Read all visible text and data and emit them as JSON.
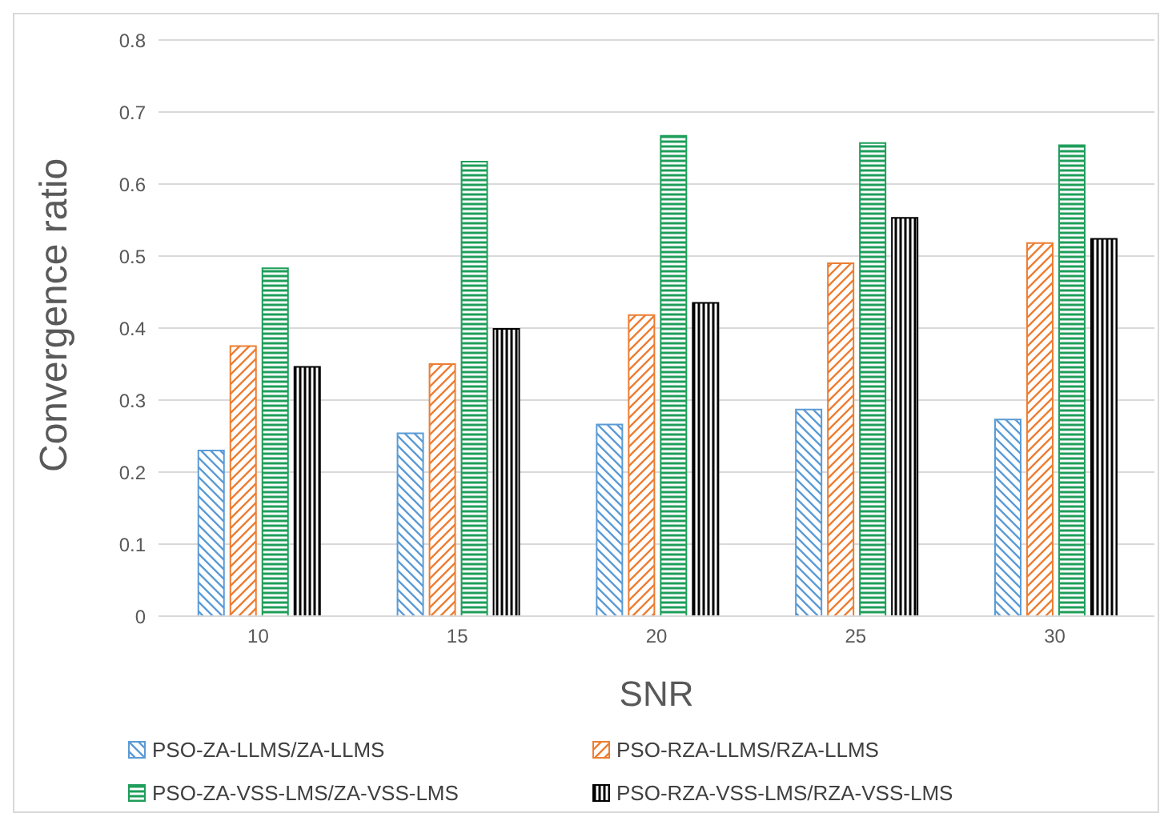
{
  "chart_data": {
    "type": "bar",
    "xlabel": "SNR",
    "ylabel": "Convergence ratio",
    "categories": [
      "10",
      "15",
      "20",
      "25",
      "30"
    ],
    "series": [
      {
        "name": "PSO-ZA-LLMS/ZA-LLMS",
        "color": "#5b9bd5",
        "values": [
          0.23,
          0.254,
          0.266,
          0.287,
          0.273
        ]
      },
      {
        "name": "PSO-RZA-LLMS/RZA-LLMS",
        "color": "#ed7d31",
        "values": [
          0.375,
          0.35,
          0.418,
          0.49,
          0.518
        ]
      },
      {
        "name": "PSO-ZA-VSS-LMS/ZA-VSS-LMS",
        "color": "#1e9e5a",
        "values": [
          0.483,
          0.631,
          0.667,
          0.657,
          0.654
        ]
      },
      {
        "name": "PSO-RZA-VSS-LMS/RZA-VSS-LMS",
        "color": "#000000",
        "values": [
          0.346,
          0.399,
          0.435,
          0.553,
          0.524
        ]
      }
    ],
    "ylim": [
      0,
      0.8
    ],
    "yticks": [
      0,
      0.1,
      0.2,
      0.3,
      0.4,
      0.5,
      0.6,
      0.7,
      0.8
    ],
    "grid": "y",
    "legend": "bottom"
  }
}
